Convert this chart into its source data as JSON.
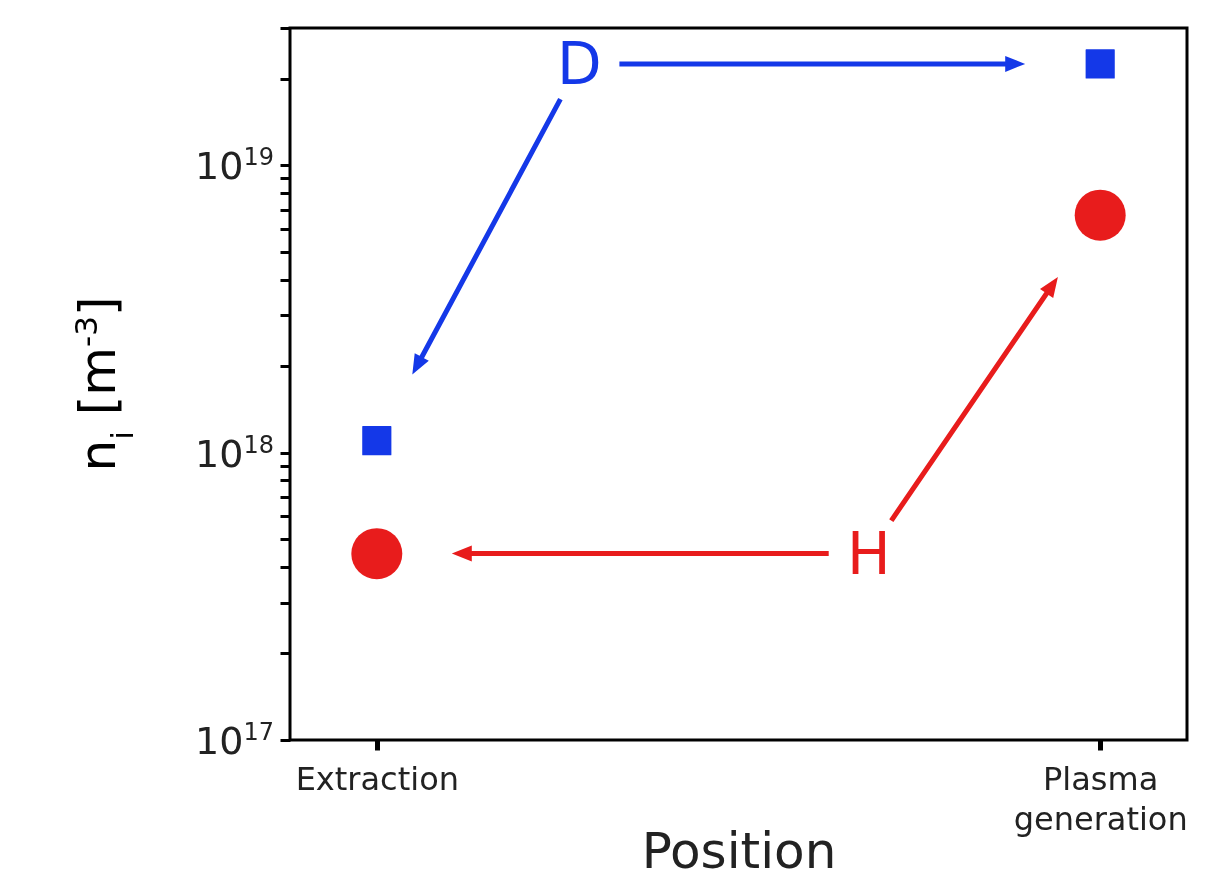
{
  "chart_data": {
    "type": "scatter",
    "xlabel": "Position",
    "ylabel": "n$_{i}$ [m$^{-3}$]",
    "categories": [
      "Extraction",
      "Plasma generation"
    ],
    "series": [
      {
        "name": "D",
        "color": "#1438e8",
        "marker": "square",
        "values": [
          1.1e+18,
          2.25e+19
        ]
      },
      {
        "name": "H",
        "color": "#e81c1c",
        "marker": "circle",
        "values": [
          4.45e+17,
          6.7e+18
        ]
      }
    ],
    "log": true,
    "ylim": [
      1e+17,
      3e+19
    ],
    "yticks": [
      {
        "value": 1e+17,
        "label": "10$^{17}$"
      },
      {
        "value": 2e+17,
        "label": null
      },
      {
        "value": 3e+17,
        "label": null
      },
      {
        "value": 4e+17,
        "label": null
      },
      {
        "value": 5e+17,
        "label": null
      },
      {
        "value": 6e+17,
        "label": null
      },
      {
        "value": 7e+17,
        "label": null
      },
      {
        "value": 8e+17,
        "label": null
      },
      {
        "value": 9e+17,
        "label": null
      },
      {
        "value": 1e+18,
        "label": "10$^{18}$"
      },
      {
        "value": 2e+18,
        "label": null
      },
      {
        "value": 3e+18,
        "label": null
      },
      {
        "value": 4e+18,
        "label": null
      },
      {
        "value": 5e+18,
        "label": null
      },
      {
        "value": 6e+18,
        "label": null
      },
      {
        "value": 7e+18,
        "label": null
      },
      {
        "value": 8e+18,
        "label": null
      },
      {
        "value": 9e+18,
        "label": null
      },
      {
        "value": 1e+19,
        "label": "10$^{19}$"
      },
      {
        "value": 2e+19,
        "label": null
      },
      {
        "value": 3e+19,
        "label": null
      }
    ],
    "grid": false
  }
}
